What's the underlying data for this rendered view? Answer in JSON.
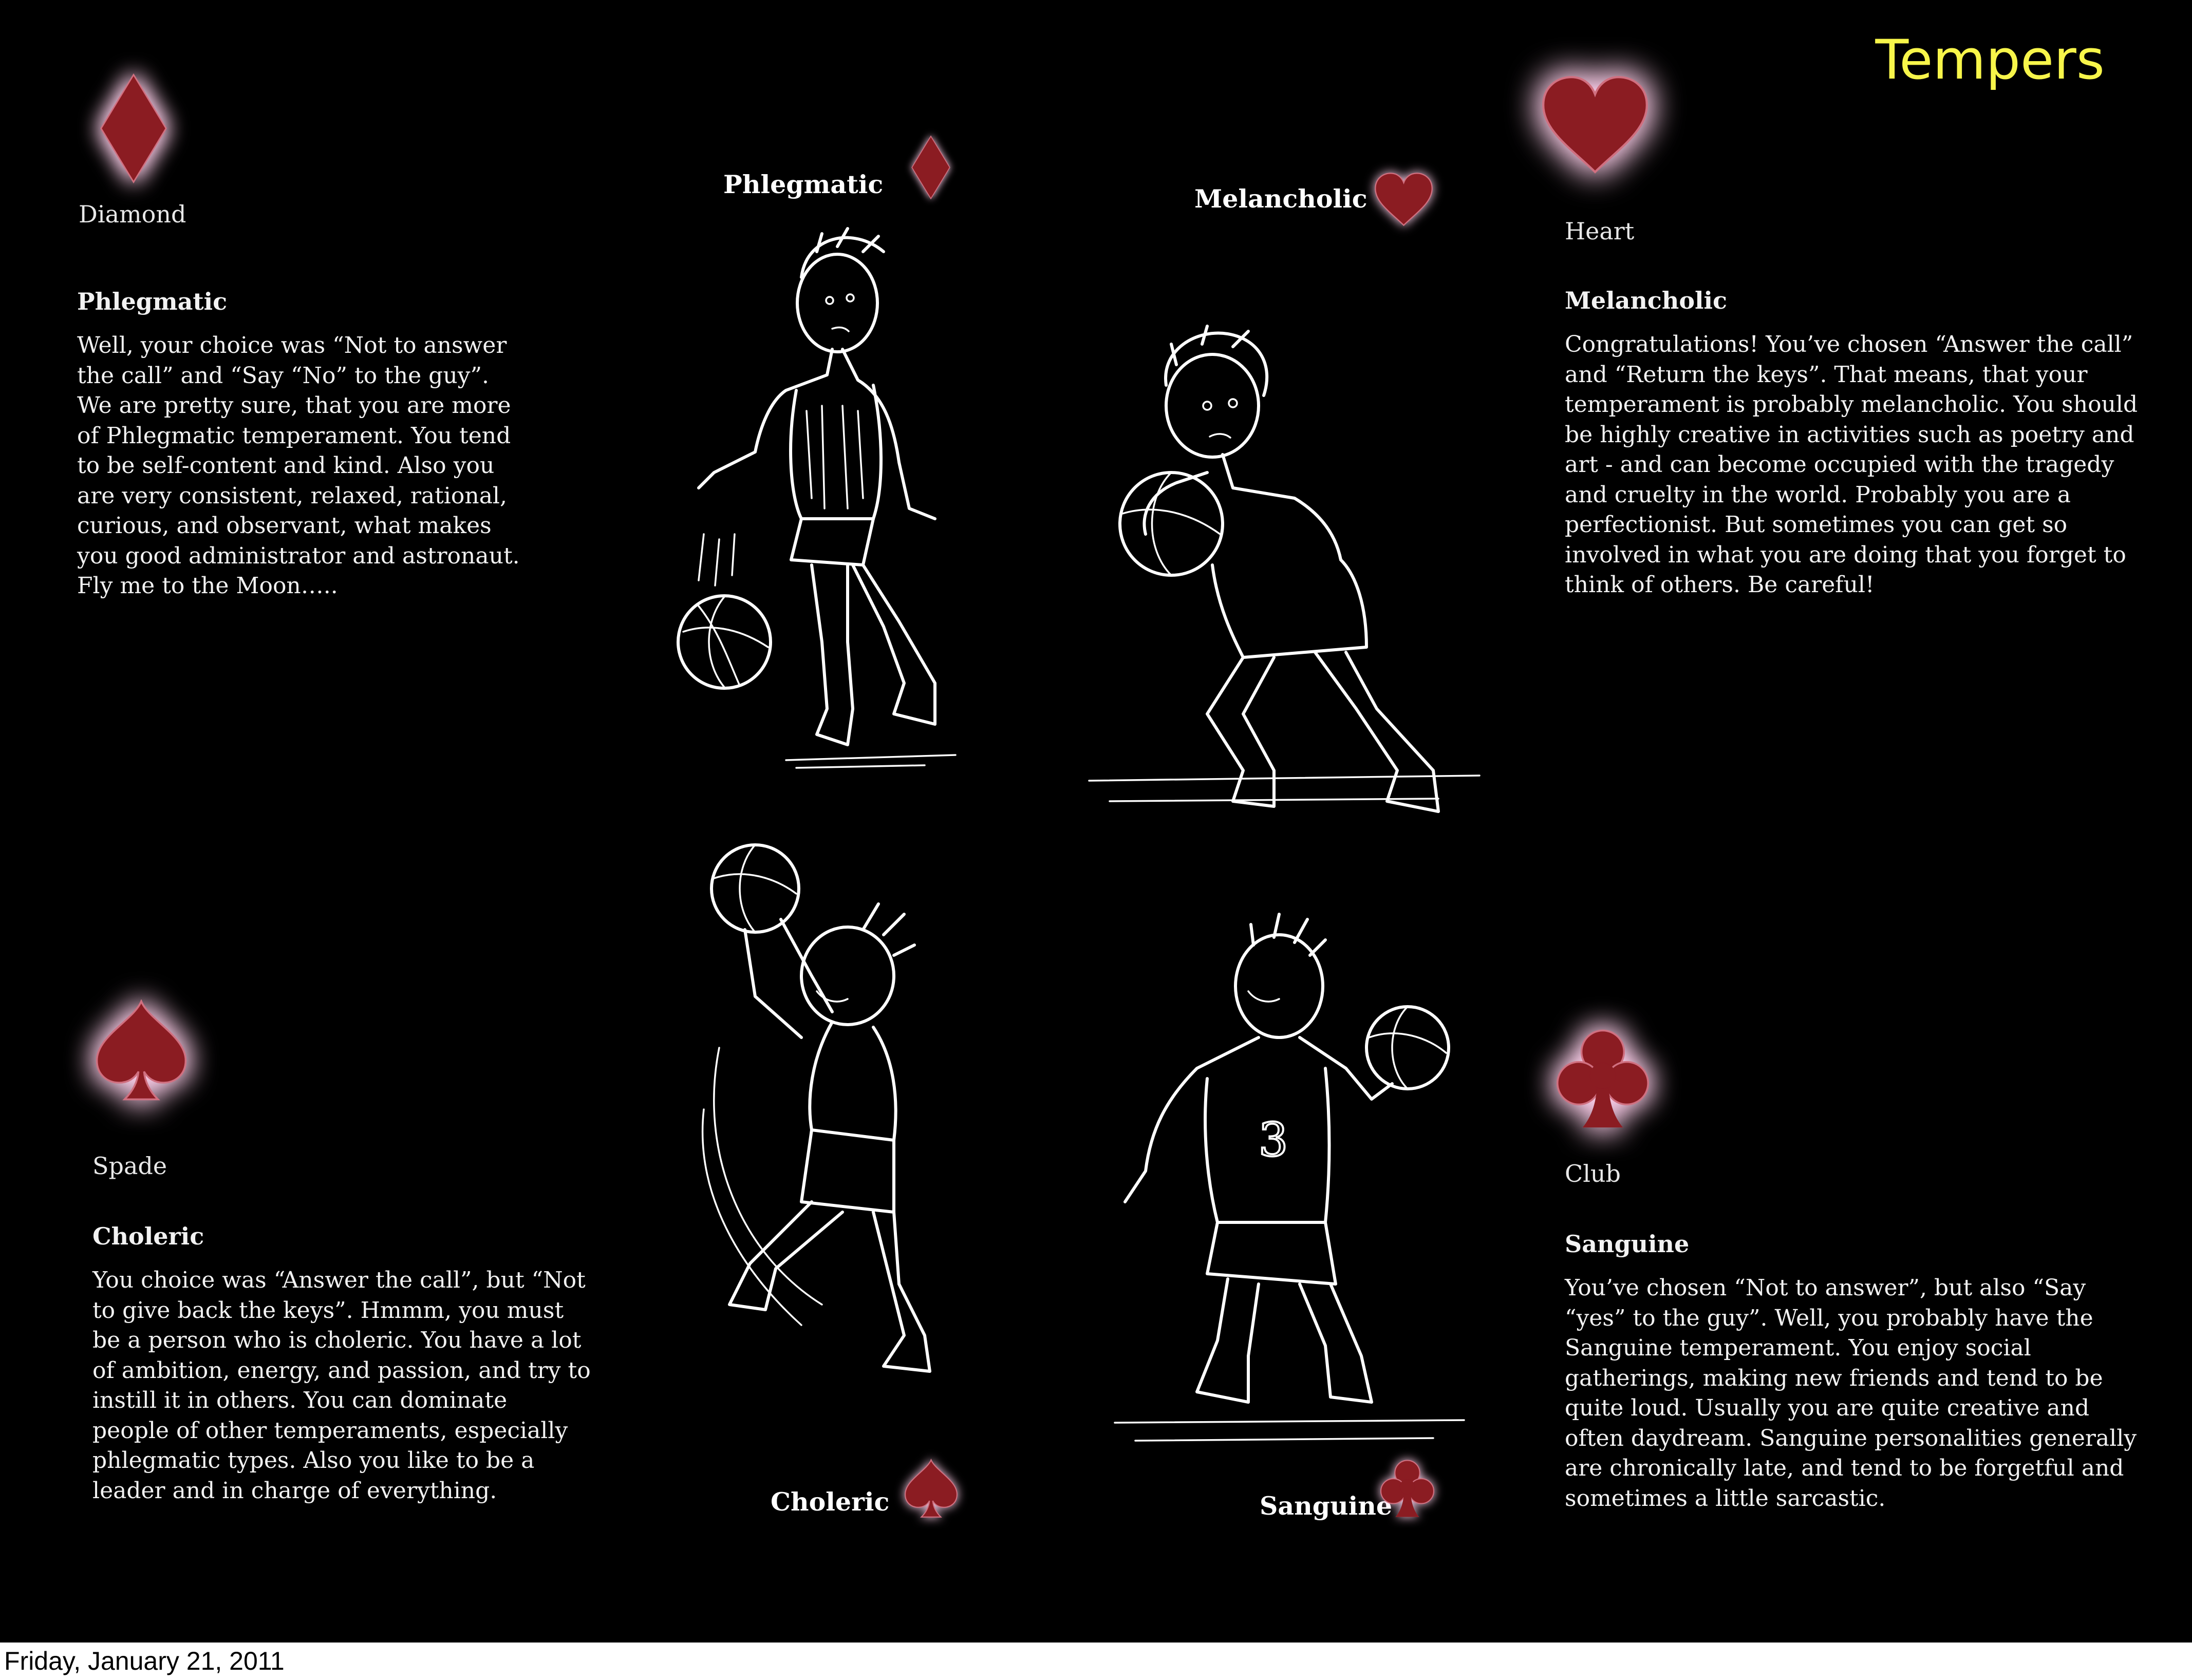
{
  "title": "Tempers",
  "colors": {
    "suit": "#8b1a24",
    "glow": "#ffc8e6",
    "title": "#f7f54a",
    "background": "#000000"
  },
  "footer": {
    "date": "Friday, January 21, 2011"
  },
  "cards": {
    "diamond": {
      "icon": "diamond-icon",
      "suit_name": "Diamond",
      "temperament": "Phlegmatic",
      "text": "Well, your choice was “Not to answer the call” and “Say “No” to the guy”. We are pretty sure, that you are more of Phlegmatic temperament. You tend to be self-content and kind. Also you are very consistent, relaxed, rational, curious, and observant, what makes you good administrator and astronaut. Fly me to the Moon….."
    },
    "heart": {
      "icon": "heart-icon",
      "suit_name": "Heart",
      "temperament": "Melancholic",
      "text": "Congratulations! You’ve chosen “Answer the call” and “Return the keys”. That means, that your temperament is probably melancholic. You should be highly creative in activities such as poetry and art - and can become occupied with the tragedy and cruelty in the world. Probably you are a perfectionist. But sometimes you can get so involved in what you are doing that you forget to think of others. Be careful!"
    },
    "spade": {
      "icon": "spade-icon",
      "suit_name": "Spade",
      "temperament": "Choleric",
      "text": "You choice was “Answer the call”, but “Not to give back the keys”. Hmmm, you must be a person who is choleric. You have a lot of ambition, energy, and passion, and try to instill it in others. You can dominate people of other temperaments, especially phlegmatic types. Also you like to be a leader and in charge of everything."
    },
    "club": {
      "icon": "club-icon",
      "suit_name": "Club",
      "temperament": "Sanguine",
      "text": "You’ve chosen “Not to answer”, but also “Say “yes” to the guy”. Well, you probably have the Sanguine temperament. You enjoy social gatherings, making new friends and tend to be quite loud. Usually you are quite creative and often daydream. Sanguine personalities generally are chronically late, and tend to be forgetful and sometimes a little sarcastic."
    }
  },
  "figures": {
    "phlegmatic": {
      "label": "Phlegmatic",
      "icon": "diamond-icon"
    },
    "melancholic": {
      "label": "Melancholic",
      "icon": "heart-icon"
    },
    "choleric": {
      "label": "Choleric",
      "icon": "spade-icon"
    },
    "sanguine": {
      "label": "Sanguine",
      "icon": "club-icon"
    },
    "sanguine_jersey_number": "3"
  }
}
